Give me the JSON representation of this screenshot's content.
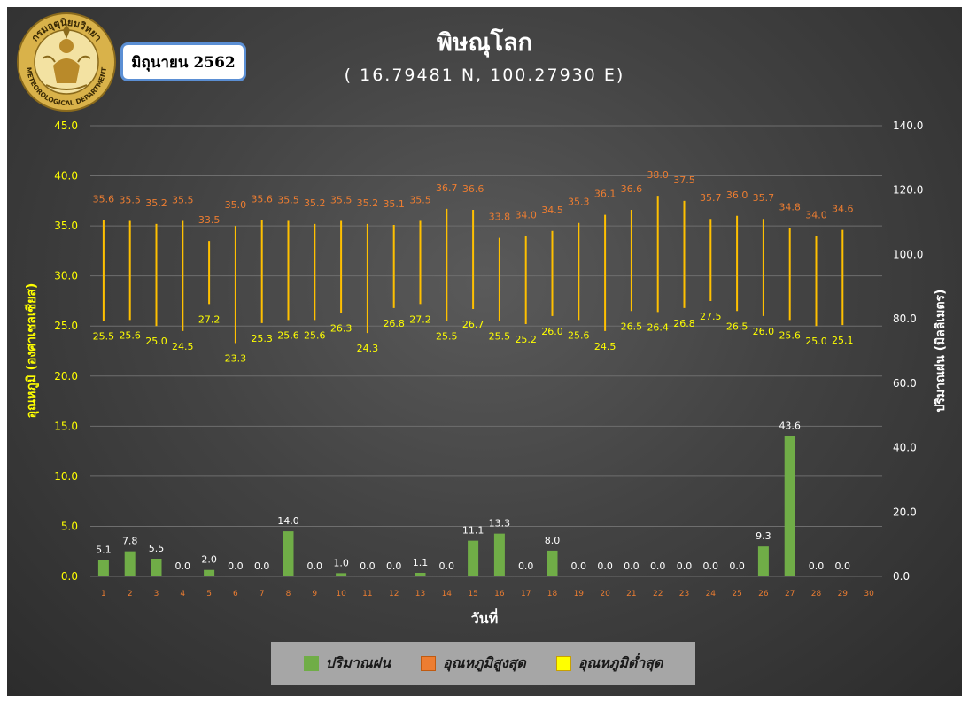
{
  "header": {
    "month": "มิถุนายน 2562",
    "title": "พิษณุโลก",
    "subtitle": "( 16.79481 N, 100.27930 E)",
    "logo_top_text": "กรมอุตุนิยมวิทยา",
    "logo_bottom_text": "METEOROLOGICAL DEPARTMENT"
  },
  "legend": {
    "rain": "ปริมาณฝน",
    "tmax": "อุณหภูมิสูงสุด",
    "tmin": "อุณหภูมิต่ำสุด"
  },
  "colors": {
    "rain": "#70ad47",
    "tmax_line": "#ffc000",
    "tmax_label": "#ed7d31",
    "tmin_label": "#ffff00",
    "left_axis": "#ffff00",
    "right_axis": "#ffffff",
    "x_ticks": "#ed7d31"
  },
  "chart_data": {
    "type": "bar",
    "xlabel": "วันที่",
    "ylabel_left": "อุณหภูมิ (องศาเซลเซียส)",
    "ylabel_right": "ปริมาณฝน (มิลลิเมตร)",
    "ylim_left": [
      0,
      45
    ],
    "ylim_right": [
      0,
      140
    ],
    "left_ticks": [
      "0.0",
      "5.0",
      "10.0",
      "15.0",
      "20.0",
      "25.0",
      "30.0",
      "35.0",
      "40.0",
      "45.0"
    ],
    "right_ticks": [
      "0.0",
      "20.0",
      "40.0",
      "60.0",
      "80.0",
      "100.0",
      "120.0",
      "140.0"
    ],
    "grid": true,
    "legend_position": "bottom",
    "categories": [
      "1",
      "2",
      "3",
      "4",
      "5",
      "6",
      "7",
      "8",
      "9",
      "10",
      "11",
      "12",
      "13",
      "14",
      "15",
      "16",
      "17",
      "18",
      "19",
      "20",
      "21",
      "22",
      "23",
      "24",
      "25",
      "26",
      "27",
      "28",
      "29",
      "30"
    ],
    "series": [
      {
        "name": "ปริมาณฝน",
        "type": "bar",
        "axis": "right",
        "values": [
          5.1,
          7.8,
          5.5,
          0.0,
          2.0,
          0.0,
          0.0,
          14.0,
          0.0,
          1.0,
          0.0,
          0.0,
          1.1,
          0.0,
          11.1,
          13.3,
          0.0,
          8.0,
          0.0,
          0.0,
          0.0,
          0.0,
          0.0,
          0.0,
          0.0,
          9.3,
          43.6,
          0.0,
          0.0,
          null
        ],
        "labels": [
          "5.1",
          "7.8",
          "5.5",
          "0.0",
          "2.0",
          "0.0",
          "0.0",
          "14.0",
          "0.0",
          "1.0",
          "0.0",
          "0.0",
          "1.1",
          "0.0",
          "11.1",
          "13.3",
          "0.0",
          "8.0",
          "0.0",
          "0.0",
          "0.0",
          "0.0",
          "0.0",
          "0.0",
          "0.0",
          "9.3",
          "43.6",
          "0.0",
          "0.0",
          ""
        ]
      },
      {
        "name": "อุณหภูมิสูงสุด",
        "type": "line",
        "axis": "left",
        "values": [
          35.6,
          35.5,
          35.2,
          35.5,
          33.5,
          35.0,
          35.6,
          35.5,
          35.2,
          35.5,
          35.2,
          35.1,
          35.5,
          36.7,
          36.6,
          33.8,
          34.0,
          34.5,
          35.3,
          36.1,
          36.6,
          38.0,
          37.5,
          35.7,
          36.0,
          35.7,
          34.8,
          34.0,
          34.6,
          null
        ],
        "labels": [
          "35.6",
          "35.5",
          "35.2",
          "35.5",
          "33.5",
          "35.0",
          "35.6",
          "35.5",
          "35.2",
          "35.5",
          "35.2",
          "35.1",
          "35.5",
          "36.7",
          "36.6",
          "33.8",
          "34.0",
          "34.5",
          "35.3",
          "36.1",
          "36.6",
          "38.0",
          "37.5",
          "35.7",
          "36.0",
          "35.7",
          "34.8",
          "34.0",
          "34.6",
          ""
        ]
      },
      {
        "name": "อุณหภูมิต่ำสุด",
        "type": "line",
        "axis": "left",
        "values": [
          25.5,
          25.6,
          25.0,
          24.5,
          27.2,
          23.3,
          25.3,
          25.6,
          25.6,
          26.3,
          24.3,
          26.8,
          27.2,
          25.5,
          26.7,
          25.5,
          25.2,
          26.0,
          25.6,
          24.5,
          26.5,
          26.4,
          26.8,
          27.5,
          26.5,
          26.0,
          25.6,
          25.0,
          25.1,
          null
        ],
        "labels": [
          "25.5",
          "25.6",
          "25.0",
          "24.5",
          "27.2",
          "23.3",
          "25.3",
          "25.6",
          "25.6",
          "26.3",
          "24.3",
          "26.8",
          "27.2",
          "25.5",
          "26.7",
          "25.5",
          "25.2",
          "26.0",
          "25.6",
          "24.5",
          "26.5",
          "26.4",
          "26.8",
          "27.5",
          "26.5",
          "26.0",
          "25.6",
          "25.0",
          "25.1",
          ""
        ]
      }
    ]
  }
}
